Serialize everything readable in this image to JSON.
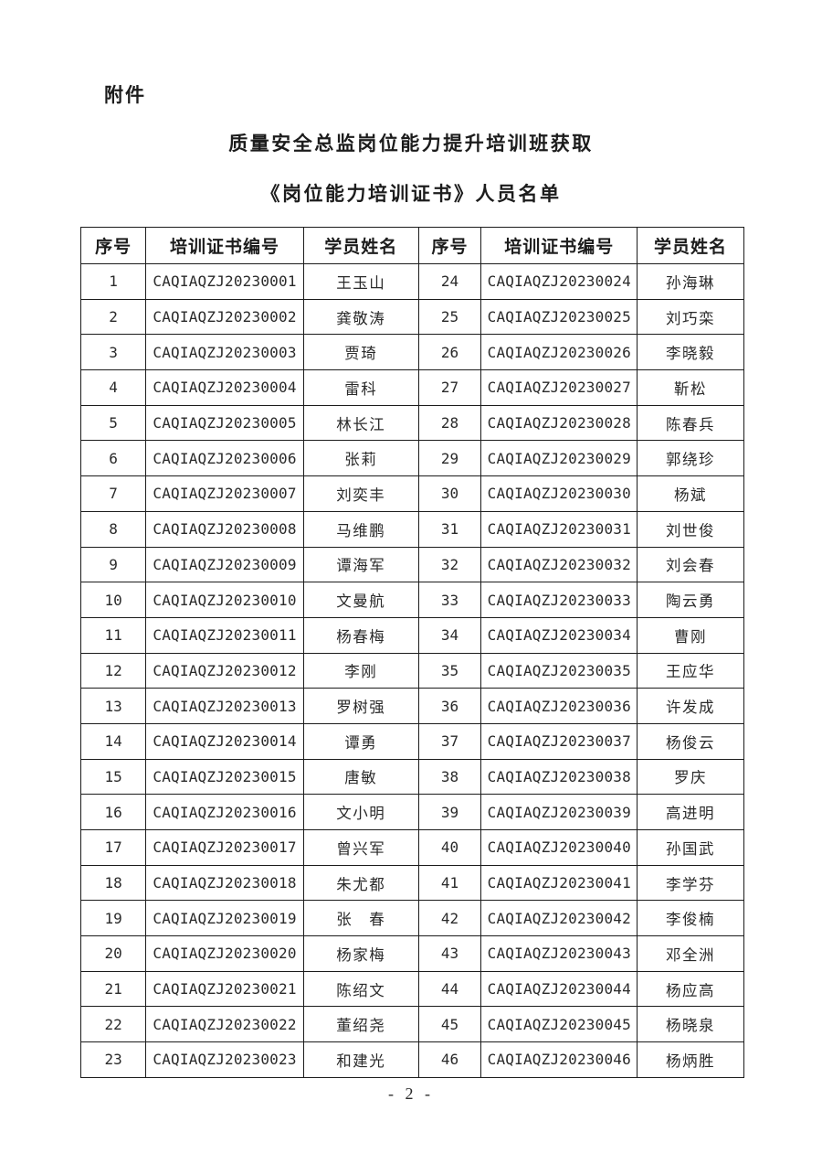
{
  "page": {
    "attachment_label": "附件",
    "title_line1": "质量安全总监岗位能力提升培训班获取",
    "title_line2": "《岗位能力培训证书》人员名单",
    "page_number": "- 2 -"
  },
  "colors": {
    "text": "#1c1c1c",
    "border": "#1c1c1c",
    "background": "#ffffff"
  },
  "table": {
    "headers": [
      "序号",
      "培训证书编号",
      "学员姓名",
      "序号",
      "培训证书编号",
      "学员姓名"
    ],
    "rows": [
      {
        "no1": "1",
        "cert1": "CAQIAQZJ20230001",
        "name1": "王玉山",
        "no2": "24",
        "cert2": "CAQIAQZJ20230024",
        "name2": "孙海琳"
      },
      {
        "no1": "2",
        "cert1": "CAQIAQZJ20230002",
        "name1": "龚敬涛",
        "no2": "25",
        "cert2": "CAQIAQZJ20230025",
        "name2": "刘巧栾"
      },
      {
        "no1": "3",
        "cert1": "CAQIAQZJ20230003",
        "name1": "贾琦",
        "no2": "26",
        "cert2": "CAQIAQZJ20230026",
        "name2": "李晓毅"
      },
      {
        "no1": "4",
        "cert1": "CAQIAQZJ20230004",
        "name1": "雷科",
        "no2": "27",
        "cert2": "CAQIAQZJ20230027",
        "name2": "靳松"
      },
      {
        "no1": "5",
        "cert1": "CAQIAQZJ20230005",
        "name1": "林长江",
        "no2": "28",
        "cert2": "CAQIAQZJ20230028",
        "name2": "陈春兵"
      },
      {
        "no1": "6",
        "cert1": "CAQIAQZJ20230006",
        "name1": "张莉",
        "no2": "29",
        "cert2": "CAQIAQZJ20230029",
        "name2": "郭绕珍"
      },
      {
        "no1": "7",
        "cert1": "CAQIAQZJ20230007",
        "name1": "刘奕丰",
        "no2": "30",
        "cert2": "CAQIAQZJ20230030",
        "name2": "杨斌"
      },
      {
        "no1": "8",
        "cert1": "CAQIAQZJ20230008",
        "name1": "马维鹏",
        "no2": "31",
        "cert2": "CAQIAQZJ20230031",
        "name2": "刘世俊"
      },
      {
        "no1": "9",
        "cert1": "CAQIAQZJ20230009",
        "name1": "谭海军",
        "no2": "32",
        "cert2": "CAQIAQZJ20230032",
        "name2": "刘会春"
      },
      {
        "no1": "10",
        "cert1": "CAQIAQZJ20230010",
        "name1": "文曼航",
        "no2": "33",
        "cert2": "CAQIAQZJ20230033",
        "name2": "陶云勇"
      },
      {
        "no1": "11",
        "cert1": "CAQIAQZJ20230011",
        "name1": "杨春梅",
        "no2": "34",
        "cert2": "CAQIAQZJ20230034",
        "name2": "曹刚"
      },
      {
        "no1": "12",
        "cert1": "CAQIAQZJ20230012",
        "name1": "李刚",
        "no2": "35",
        "cert2": "CAQIAQZJ20230035",
        "name2": "王应华"
      },
      {
        "no1": "13",
        "cert1": "CAQIAQZJ20230013",
        "name1": "罗树强",
        "no2": "36",
        "cert2": "CAQIAQZJ20230036",
        "name2": "许发成"
      },
      {
        "no1": "14",
        "cert1": "CAQIAQZJ20230014",
        "name1": "谭勇",
        "no2": "37",
        "cert2": "CAQIAQZJ20230037",
        "name2": "杨俊云"
      },
      {
        "no1": "15",
        "cert1": "CAQIAQZJ20230015",
        "name1": "唐敏",
        "no2": "38",
        "cert2": "CAQIAQZJ20230038",
        "name2": "罗庆"
      },
      {
        "no1": "16",
        "cert1": "CAQIAQZJ20230016",
        "name1": "文小明",
        "no2": "39",
        "cert2": "CAQIAQZJ20230039",
        "name2": "高进明"
      },
      {
        "no1": "17",
        "cert1": "CAQIAQZJ20230017",
        "name1": "曾兴军",
        "no2": "40",
        "cert2": "CAQIAQZJ20230040",
        "name2": "孙国武"
      },
      {
        "no1": "18",
        "cert1": "CAQIAQZJ20230018",
        "name1": "朱尤都",
        "no2": "41",
        "cert2": "CAQIAQZJ20230041",
        "name2": "李学芬"
      },
      {
        "no1": "19",
        "cert1": "CAQIAQZJ20230019",
        "name1": "张　春",
        "no2": "42",
        "cert2": "CAQIAQZJ20230042",
        "name2": "李俊楠"
      },
      {
        "no1": "20",
        "cert1": "CAQIAQZJ20230020",
        "name1": "杨家梅",
        "no2": "43",
        "cert2": "CAQIAQZJ20230043",
        "name2": "邓全洲"
      },
      {
        "no1": "21",
        "cert1": "CAQIAQZJ20230021",
        "name1": "陈绍文",
        "no2": "44",
        "cert2": "CAQIAQZJ20230044",
        "name2": "杨应高"
      },
      {
        "no1": "22",
        "cert1": "CAQIAQZJ20230022",
        "name1": "董绍尧",
        "no2": "45",
        "cert2": "CAQIAQZJ20230045",
        "name2": "杨晓泉"
      },
      {
        "no1": "23",
        "cert1": "CAQIAQZJ20230023",
        "name1": "和建光",
        "no2": "46",
        "cert2": "CAQIAQZJ20230046",
        "name2": "杨炳胜"
      }
    ]
  }
}
